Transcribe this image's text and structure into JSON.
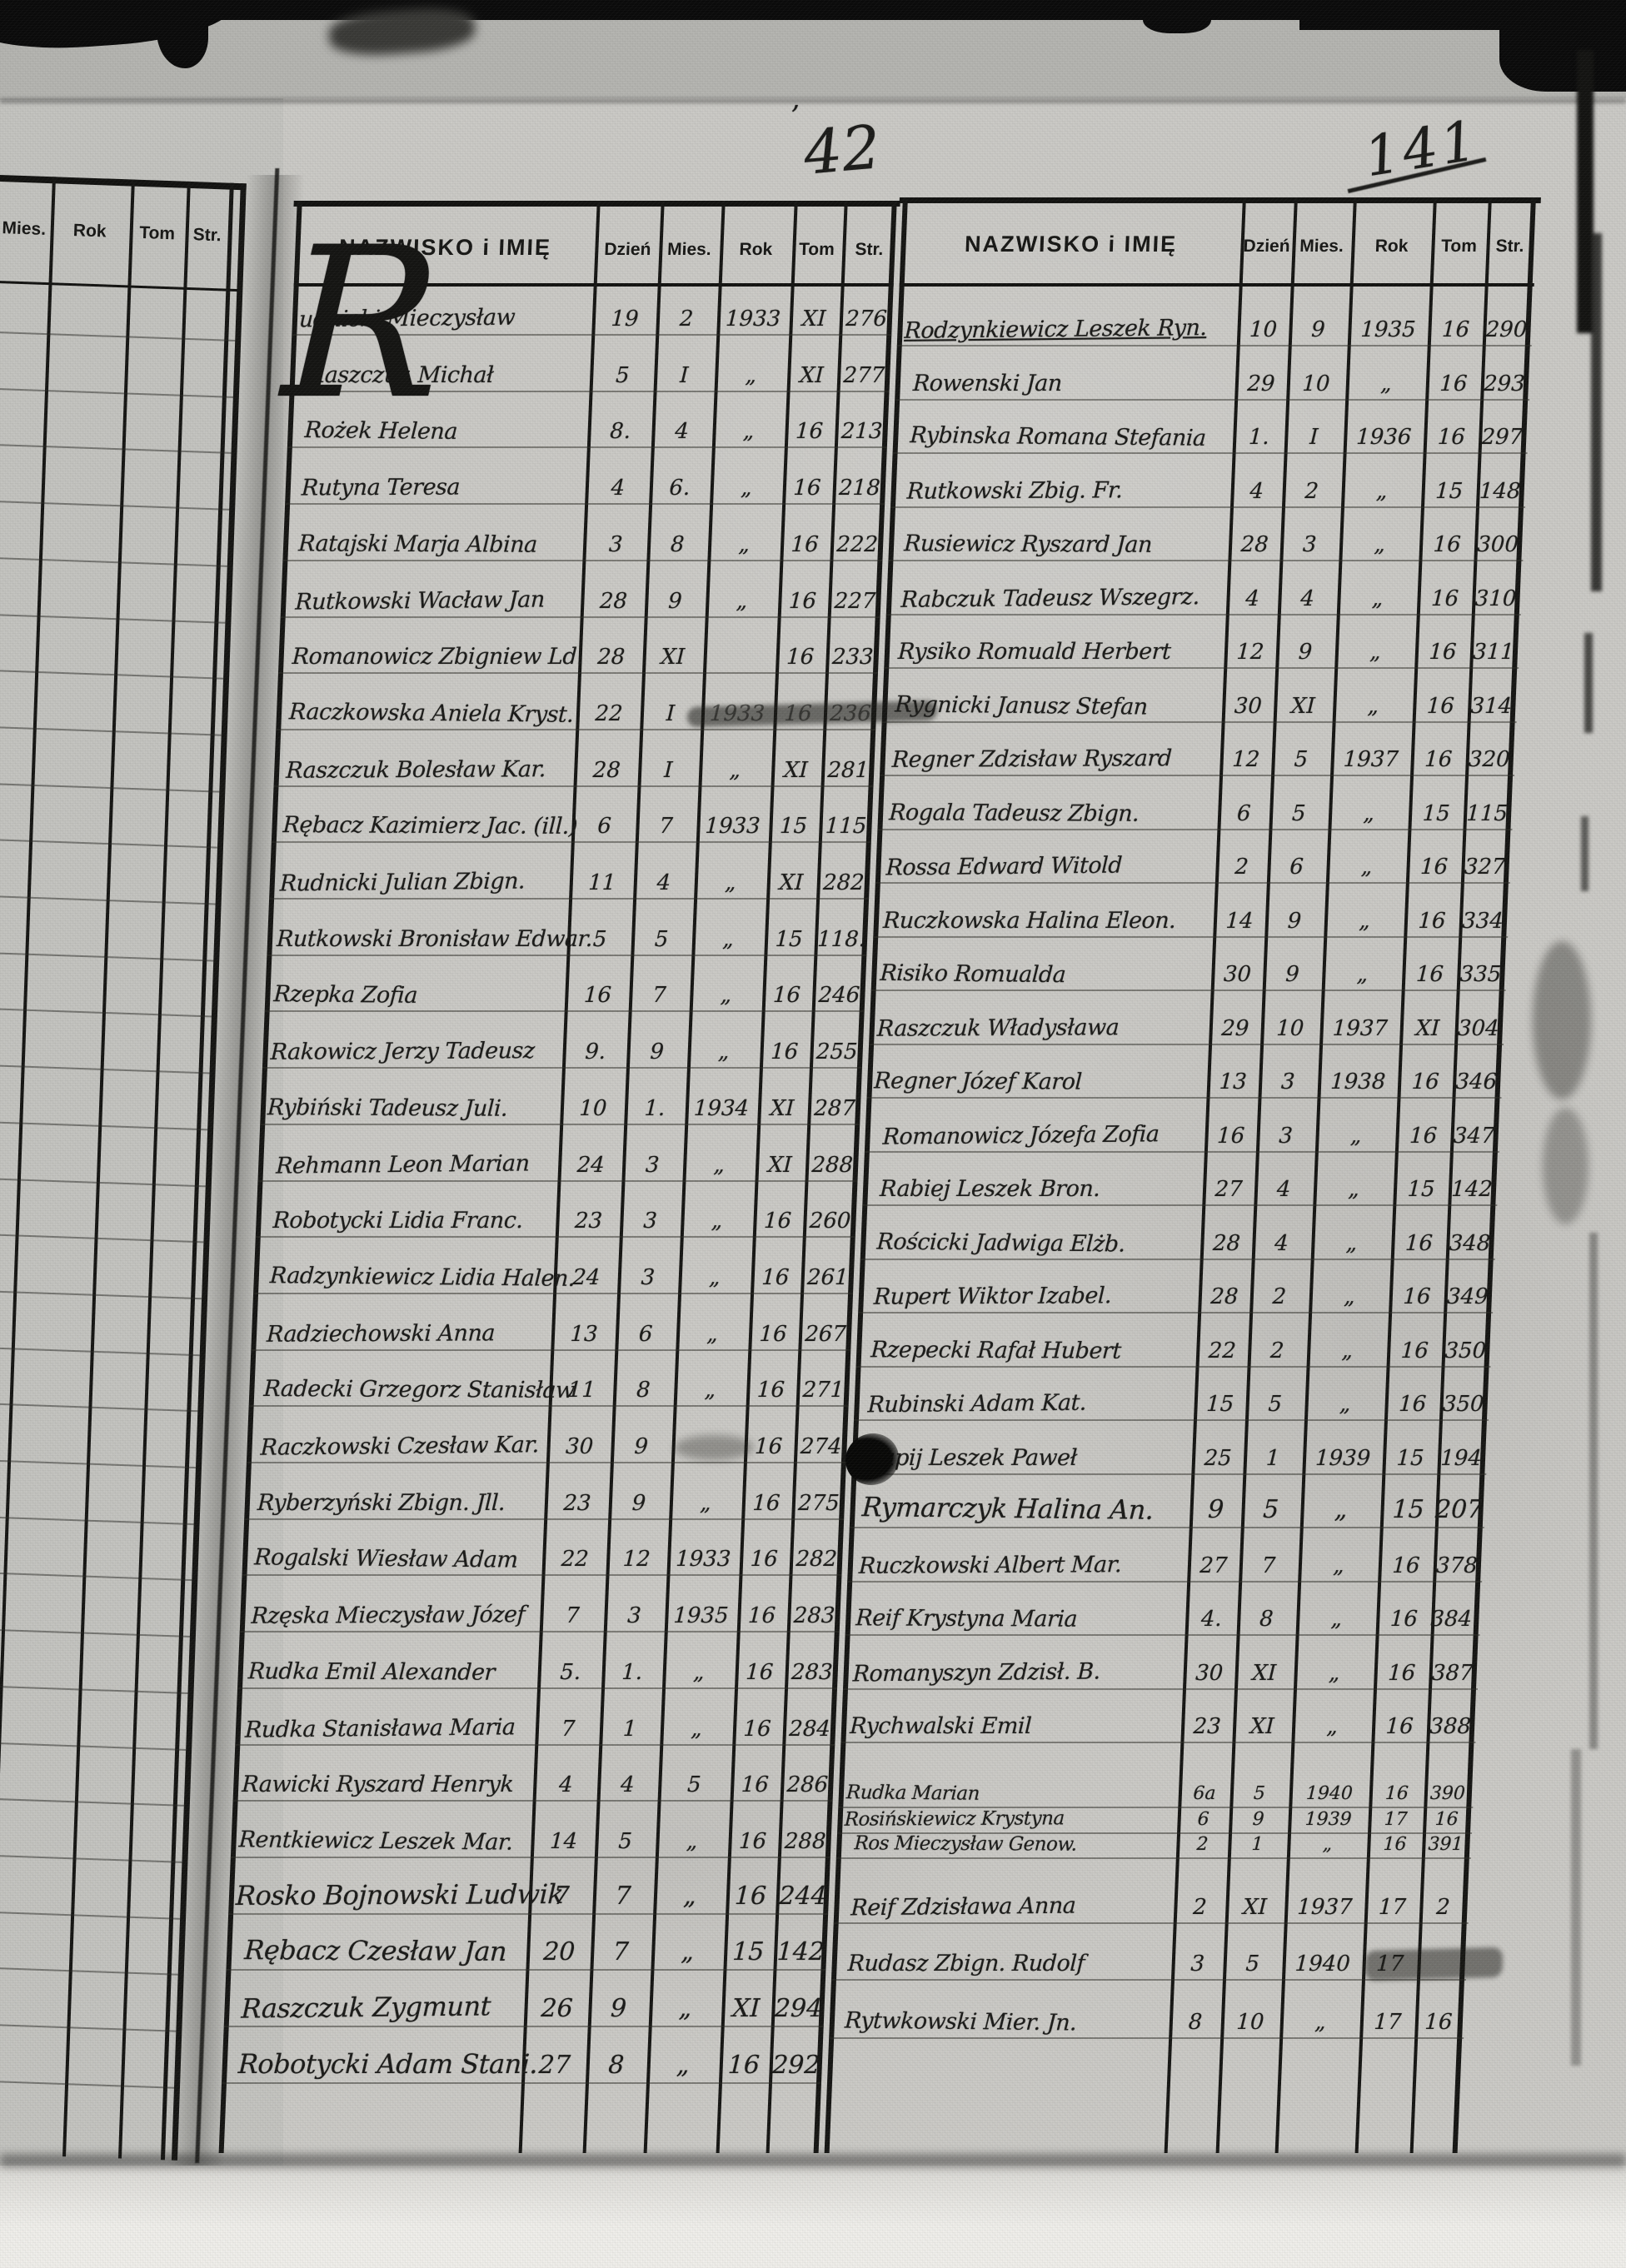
{
  "page": {
    "center_page_number": "42",
    "center_page_mark": "ʼ",
    "corner_page_number": "141",
    "initial_letter": "R",
    "ink_color": "#1b1b19",
    "paper_color": "#cac9c5"
  },
  "margin_table": {
    "headers": [
      "Mies.",
      "Rok",
      "Tom",
      "Str."
    ]
  },
  "left_table": {
    "headers": [
      "NAZWISKO i IMIĘ",
      "Dzień",
      "Mies.",
      "Rok",
      "Tom",
      "Str."
    ],
    "rows": [
      {
        "name": "udnicki Mieczysław",
        "day": "19",
        "month": "2",
        "year": "1933",
        "tom": "XI",
        "str": "276"
      },
      {
        "name": "Raszczuk Michał",
        "day": "5",
        "month": "I",
        "year": "„",
        "tom": "XI",
        "str": "277"
      },
      {
        "name": "Rożek Helena",
        "day": "8.",
        "month": "4",
        "year": "„",
        "tom": "16",
        "str": "213"
      },
      {
        "name": "Rutyna Teresa",
        "day": "4",
        "month": "6.",
        "year": "„",
        "tom": "16",
        "str": "218"
      },
      {
        "name": "Ratajski Marja Albina",
        "day": "3",
        "month": "8",
        "year": "„",
        "tom": "16",
        "str": "222"
      },
      {
        "name": "Rutkowski Wacław Jan",
        "day": "28",
        "month": "9",
        "year": "„",
        "tom": "16",
        "str": "227"
      },
      {
        "name": "Romanowicz Zbigniew Ld.",
        "day": "28",
        "month": "XI",
        "year": "",
        "tom": "16",
        "str": "233"
      },
      {
        "name": "Raczkowska Aniela Kryst.",
        "day": "22",
        "month": "I",
        "year": "1933",
        "tom": "16",
        "str": "236",
        "struck": true
      },
      {
        "name": "Raszczuk Bolesław Kar.",
        "day": "28",
        "month": "I",
        "year": "„",
        "tom": "XI",
        "str": "281"
      },
      {
        "name": "Rębacz Kazimierz Jac. (ill.)",
        "day": "6",
        "month": "7",
        "year": "1933",
        "tom": "15",
        "str": "115"
      },
      {
        "name": "Rudnicki Julian Zbign.",
        "day": "11",
        "month": "4",
        "year": "„",
        "tom": "XI",
        "str": "282"
      },
      {
        "name": "Rutkowski Bronisław Edwar.",
        "day": "5",
        "month": "5",
        "year": "„",
        "tom": "15",
        "str": "118."
      },
      {
        "name": "Rzepka Zofia",
        "day": "16",
        "month": "7",
        "year": "„",
        "tom": "16",
        "str": "246"
      },
      {
        "name": "Rakowicz Jerzy Tadeusz",
        "day": "9.",
        "month": "9",
        "year": "„",
        "tom": "16",
        "str": "255"
      },
      {
        "name": "Rybiński Tadeusz Juli.",
        "day": "10",
        "month": "1.",
        "year": "1934",
        "tom": "XI",
        "str": "287"
      },
      {
        "name": "Rehmann Leon Marian",
        "day": "24",
        "month": "3",
        "year": "„",
        "tom": "XI",
        "str": "288"
      },
      {
        "name": "Robotycki Lidia Franc.",
        "day": "23",
        "month": "3",
        "year": "„",
        "tom": "16",
        "str": "260"
      },
      {
        "name": "Radzynkiewicz Lidia Halen.",
        "day": "24",
        "month": "3",
        "year": "„",
        "tom": "16",
        "str": "261"
      },
      {
        "name": "Radziechowski Anna",
        "day": "13",
        "month": "6",
        "year": "„",
        "tom": "16",
        "str": "267"
      },
      {
        "name": "Radecki Grzegorz Stanisław",
        "day": "11",
        "month": "8",
        "year": "„",
        "tom": "16",
        "str": "271"
      },
      {
        "name": "Raczkowski Czesław Kar.",
        "day": "30",
        "month": "9",
        "year": "",
        "tom": "16",
        "str": "274",
        "smudge_year": true
      },
      {
        "name": "Ryberzyński Zbign. Jll.",
        "day": "23",
        "month": "9",
        "year": "„",
        "tom": "16",
        "str": "275"
      },
      {
        "name": "Rogalski Wiesław Adam",
        "day": "22",
        "month": "12",
        "year": "1933",
        "tom": "16",
        "str": "282"
      },
      {
        "name": "Rzęska Mieczysław Józef",
        "day": "7",
        "month": "3",
        "year": "1935",
        "tom": "16",
        "str": "283"
      },
      {
        "name": "Rudka Emil Alexander",
        "day": "5.",
        "month": "1.",
        "year": "„",
        "tom": "16",
        "str": "283"
      },
      {
        "name": "Rudka Stanisława Maria",
        "day": "7",
        "month": "1",
        "year": "„",
        "tom": "16",
        "str": "284"
      },
      {
        "name": "Rawicki Ryszard Henryk",
        "day": "4",
        "month": "4",
        "year": "5",
        "tom": "16",
        "str": "286"
      },
      {
        "name": "Rentkiewicz Leszek Mar.",
        "day": "14",
        "month": "5",
        "year": "„",
        "tom": "16",
        "str": "288"
      },
      {
        "name": "Rosko Bojnowski Ludwik",
        "day": "7",
        "month": "7",
        "year": "„",
        "tom": "16",
        "str": "244",
        "big": true
      },
      {
        "name": "Rębacz Czesław Jan",
        "day": "20",
        "month": "7",
        "year": "„",
        "tom": "15",
        "str": "142",
        "big": true
      },
      {
        "name": "Raszczuk Zygmunt",
        "day": "26",
        "month": "9",
        "year": "„",
        "tom": "XI",
        "str": "294",
        "big": true
      },
      {
        "name": "Robotycki Adam Stani.",
        "day": "27",
        "month": "8",
        "year": "„",
        "tom": "16",
        "str": "292",
        "big": true
      }
    ]
  },
  "right_table": {
    "headers": [
      "NAZWISKO i IMIĘ",
      "Dzień",
      "Mies.",
      "Rok",
      "Tom",
      "Str."
    ],
    "rows": [
      {
        "name": "Rodzynkiewicz Leszek Ryn.",
        "day": "10",
        "month": "9",
        "year": "1935",
        "tom": "16",
        "str": "290",
        "underline": true
      },
      {
        "name": "Rowenski Jan",
        "day": "29",
        "month": "10",
        "year": "„",
        "tom": "16",
        "str": "293"
      },
      {
        "name": "Rybinska Romana Stefania",
        "day": "1.",
        "month": "I",
        "year": "1936",
        "tom": "16",
        "str": "297"
      },
      {
        "name": "Rutkowski Zbig. Fr.",
        "day": "4",
        "month": "2",
        "year": "„",
        "tom": "15",
        "str": "148"
      },
      {
        "name": "Rusiewicz Ryszard Jan",
        "day": "28",
        "month": "3",
        "year": "„",
        "tom": "16",
        "str": "300"
      },
      {
        "name": "Rabczuk Tadeusz Wszegrz.",
        "day": "4",
        "month": "4",
        "year": "„",
        "tom": "16",
        "str": "310"
      },
      {
        "name": "Rysiko Romuald Herbert",
        "day": "12",
        "month": "9",
        "year": "„",
        "tom": "16",
        "str": "311"
      },
      {
        "name": "Rygnicki Janusz Stefan",
        "day": "30",
        "month": "XI",
        "year": "„",
        "tom": "16",
        "str": "314"
      },
      {
        "name": "Regner Zdzisław Ryszard",
        "day": "12",
        "month": "5",
        "year": "1937",
        "tom": "16",
        "str": "320"
      },
      {
        "name": "Rogala Tadeusz Zbign.",
        "day": "6",
        "month": "5",
        "year": "„",
        "tom": "15",
        "str": "115"
      },
      {
        "name": "Rossa Edward Witold",
        "day": "2",
        "month": "6",
        "year": "„",
        "tom": "16",
        "str": "327"
      },
      {
        "name": "Ruczkowska Halina Eleon.",
        "day": "14",
        "month": "9",
        "year": "„",
        "tom": "16",
        "str": "334"
      },
      {
        "name": "Risiko Romualda",
        "day": "30",
        "month": "9",
        "year": "„",
        "tom": "16",
        "str": "335"
      },
      {
        "name": "Raszczuk Władysława",
        "day": "29",
        "month": "10",
        "year": "1937",
        "tom": "XI",
        "str": "304"
      },
      {
        "name": "Regner Józef Karol",
        "day": "13",
        "month": "3",
        "year": "1938",
        "tom": "16",
        "str": "346"
      },
      {
        "name": "Romanowicz Józefa Zofia",
        "day": "16",
        "month": "3",
        "year": "„",
        "tom": "16",
        "str": "347"
      },
      {
        "name": "Rabiej Leszek Bron.",
        "day": "27",
        "month": "4",
        "year": "„",
        "tom": "15",
        "str": "142"
      },
      {
        "name": "Rościcki Jadwiga Elżb.",
        "day": "28",
        "month": "4",
        "year": "„",
        "tom": "16",
        "str": "348"
      },
      {
        "name": "Rupert Wiktor Izabel.",
        "day": "28",
        "month": "2",
        "year": "„",
        "tom": "16",
        "str": "349"
      },
      {
        "name": "Rzepecki Rafał Hubert",
        "day": "22",
        "month": "2",
        "year": "„",
        "tom": "16",
        "str": "350"
      },
      {
        "name": "Rubinski Adam Kat.",
        "day": "15",
        "month": "5",
        "year": "„",
        "tom": "16",
        "str": "350"
      },
      {
        "name": "Rapij Leszek Paweł",
        "day": "25",
        "month": "1",
        "year": "1939",
        "tom": "15",
        "str": "194",
        "blot": true
      },
      {
        "name": "Rymarczyk Halina An.",
        "day": "9",
        "month": "5",
        "year": "„",
        "tom": "15",
        "str": "207",
        "big": true
      },
      {
        "name": "Ruczkowski Albert Mar.",
        "day": "27",
        "month": "7",
        "year": "„",
        "tom": "16",
        "str": "378"
      },
      {
        "name": "Reif Krystyna Maria",
        "day": "4.",
        "month": "8",
        "year": "„",
        "tom": "16",
        "str": "384."
      },
      {
        "name": "Romanyszyn Zdzisł. B.",
        "day": "30",
        "month": "XI",
        "year": "„",
        "tom": "16",
        "str": "387"
      },
      {
        "name": "Rychwalski Emil",
        "day": "23",
        "month": "XI",
        "year": "„",
        "tom": "16",
        "str": "388"
      },
      {
        "name": "Rudka Marian",
        "day": "6a",
        "month": "5",
        "year": "1940",
        "tom": "16",
        "str": "390",
        "compact": true
      },
      {
        "name": "Rosińskiewicz Krystyna",
        "day": "6",
        "month": "9",
        "year": "1939",
        "tom": "17",
        "str": "16",
        "compact": true
      },
      {
        "name": "Ros Mieczysław Genow.",
        "day": "2",
        "month": "1",
        "year": "„",
        "tom": "16",
        "str": "391",
        "compact": true
      },
      {
        "name": "Reif Zdzisława Anna",
        "day": "2",
        "month": "XI",
        "year": "1937",
        "tom": "17",
        "str": "2"
      },
      {
        "name": "Rudasz Zbign. Rudolf",
        "day": "3",
        "month": "5",
        "year": "1940",
        "tom": "17",
        "str": "",
        "smudge_end": true
      },
      {
        "name": "Rytwkowski Mier. Jn.",
        "day": "8",
        "month": "10",
        "year": "„",
        "tom": "17",
        "str": "16"
      }
    ]
  }
}
